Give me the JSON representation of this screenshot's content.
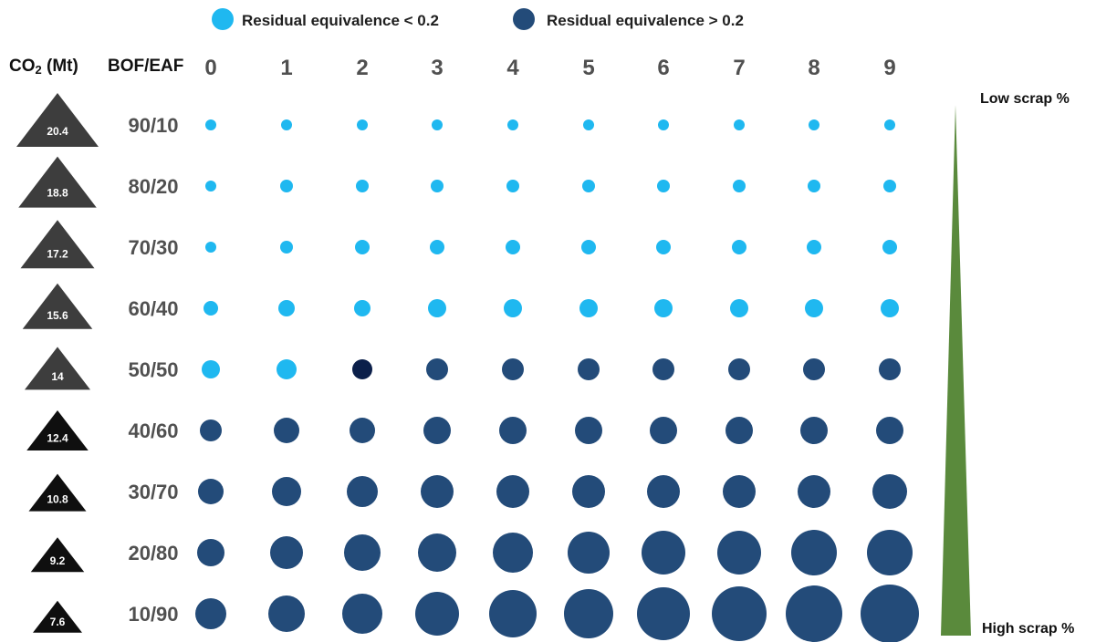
{
  "legend": {
    "low": {
      "label": "Residual equivalence < 0.2",
      "color": "#1fb8f0"
    },
    "high": {
      "label": "Residual equivalence > 0.2",
      "color": "#234b79"
    }
  },
  "headers": {
    "co2": "CO2 (Mt)",
    "co2_main": "CO",
    "co2_sub": "2",
    "co2_unit": " (Mt)",
    "ratio": "BOF/EAF"
  },
  "scrap_scale": {
    "top_label": "Low scrap %",
    "bottom_label": "High scrap %",
    "color": "#5a8a3c"
  },
  "chart_data": {
    "type": "scatter",
    "title": "",
    "xlabel": "",
    "ylabel": "",
    "x_categories": [
      "0",
      "1",
      "2",
      "3",
      "4",
      "5",
      "6",
      "7",
      "8",
      "9"
    ],
    "rows": [
      {
        "ratio": "90/10",
        "co2": "20.4",
        "sizes": [
          6,
          6,
          6,
          6,
          6,
          6,
          6,
          6,
          6,
          6
        ],
        "classes": [
          "low",
          "low",
          "low",
          "low",
          "low",
          "low",
          "low",
          "low",
          "low",
          "low"
        ]
      },
      {
        "ratio": "80/20",
        "co2": "18.8",
        "sizes": [
          6,
          7,
          7,
          7,
          7,
          7,
          7,
          7,
          7,
          7
        ],
        "classes": [
          "low",
          "low",
          "low",
          "low",
          "low",
          "low",
          "low",
          "low",
          "low",
          "low"
        ]
      },
      {
        "ratio": "70/30",
        "co2": "17.2",
        "sizes": [
          6,
          7,
          8,
          8,
          8,
          8,
          8,
          8,
          8,
          8
        ],
        "classes": [
          "low",
          "low",
          "low",
          "low",
          "low",
          "low",
          "low",
          "low",
          "low",
          "low"
        ]
      },
      {
        "ratio": "60/40",
        "co2": "15.6",
        "sizes": [
          8,
          9,
          9,
          10,
          10,
          10,
          10,
          10,
          10,
          10
        ],
        "classes": [
          "low",
          "low",
          "low",
          "low",
          "low",
          "low",
          "low",
          "low",
          "low",
          "low"
        ]
      },
      {
        "ratio": "50/50",
        "co2": "14",
        "sizes": [
          10,
          11,
          11,
          12,
          12,
          12,
          12,
          12,
          12,
          12
        ],
        "classes": [
          "low",
          "low",
          "high-dark",
          "high",
          "high",
          "high",
          "high",
          "high",
          "high",
          "high"
        ]
      },
      {
        "ratio": "40/60",
        "co2": "12.4",
        "sizes": [
          12,
          14,
          14,
          15,
          15,
          15,
          15,
          15,
          15,
          15
        ],
        "classes": [
          "high",
          "high",
          "high",
          "high",
          "high",
          "high",
          "high",
          "high",
          "high",
          "high"
        ]
      },
      {
        "ratio": "30/70",
        "co2": "10.8",
        "sizes": [
          14,
          16,
          17,
          18,
          18,
          18,
          18,
          18,
          18,
          19
        ],
        "classes": [
          "high",
          "high",
          "high",
          "high",
          "high",
          "high",
          "high",
          "high",
          "high",
          "high"
        ]
      },
      {
        "ratio": "20/80",
        "co2": "9.2",
        "sizes": [
          15,
          18,
          20,
          21,
          22,
          23,
          24,
          24,
          25,
          25
        ],
        "classes": [
          "high",
          "high",
          "high",
          "high",
          "high",
          "high",
          "high",
          "high",
          "high",
          "high"
        ]
      },
      {
        "ratio": "10/90",
        "co2": "7.6",
        "sizes": [
          17,
          20,
          22,
          24,
          26,
          27,
          29,
          30,
          31,
          32
        ],
        "classes": [
          "high",
          "high",
          "high",
          "high",
          "high",
          "high",
          "high",
          "high",
          "high",
          "high"
        ]
      }
    ],
    "colors": {
      "low": "#1fb8f0",
      "high": "#234b79",
      "high-dark": "#0b1f4a"
    },
    "triangle_colors": [
      "#3d3d3d",
      "#3d3d3d",
      "#3d3d3d",
      "#3d3d3d",
      "#3d3d3d",
      "#0f0f0f",
      "#0f0f0f",
      "#0f0f0f",
      "#0f0f0f"
    ]
  }
}
